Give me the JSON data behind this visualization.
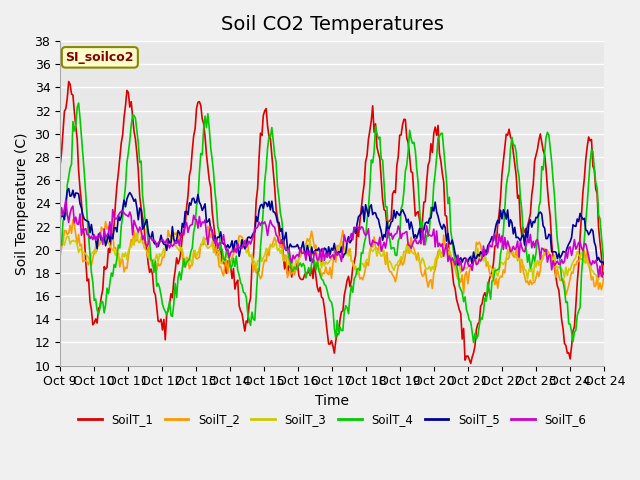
{
  "title": "Soil CO2 Temperatures",
  "xlabel": "Time",
  "ylabel": "Soil Temperature (C)",
  "legend_label": "SI_soilco2",
  "ylim": [
    10,
    38
  ],
  "series_labels": [
    "SoilT_1",
    "SoilT_2",
    "SoilT_3",
    "SoilT_4",
    "SoilT_5",
    "SoilT_6"
  ],
  "series_colors": [
    "#dd0000",
    "#ff9900",
    "#cccc00",
    "#00cc00",
    "#000099",
    "#cc00cc"
  ],
  "xtick_labels": [
    "Oct 9",
    "Oct 10",
    "Oct 11",
    "Oct 12",
    "Oct 13",
    "Oct 14",
    "Oct 15",
    "Oct 16",
    "Oct 17",
    "Oct 18",
    "Oct 19",
    "Oct 20",
    "Oct 21",
    "Oct 22",
    "Oct 23",
    "Oct 24",
    "Oct 24"
  ],
  "background_color": "#e8e8e8",
  "grid_color": "#ffffff",
  "title_fontsize": 14,
  "axis_fontsize": 10,
  "tick_fontsize": 9
}
